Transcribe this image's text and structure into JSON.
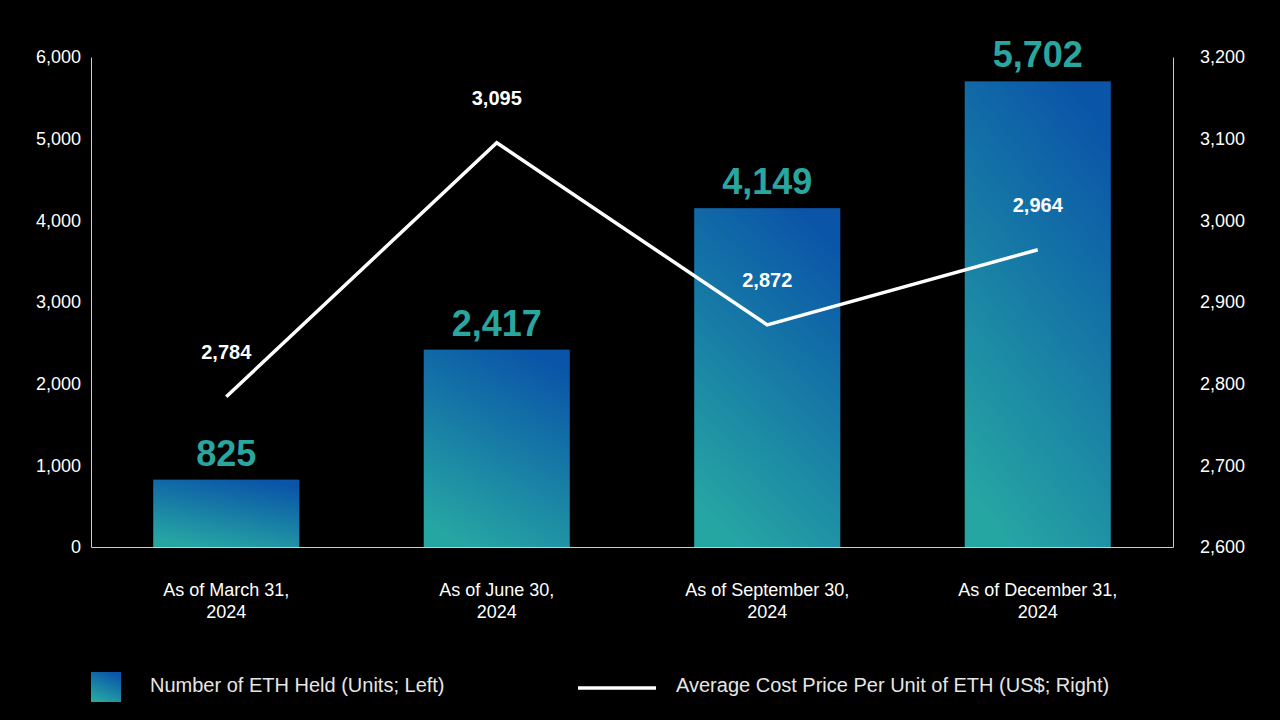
{
  "chart_data": {
    "type": "bar",
    "categories": [
      "As of March 31, 2024",
      "As of June 30, 2024",
      "As of September 30, 2024",
      "As of December 31, 2024"
    ],
    "series": [
      {
        "name": "Number of ETH Held (Units; Left)",
        "type": "bar",
        "color": "#0a55a8",
        "values": [
          825,
          2417,
          4149,
          5702
        ],
        "value_labels": [
          "825",
          "2,417",
          "4,149",
          "5,702"
        ]
      },
      {
        "name": "Average Cost Price Per Unit of ETH (US$; Right)",
        "type": "line",
        "axis": "y2",
        "color": "#ffffff",
        "values": [
          2784,
          3095,
          2872,
          2964
        ],
        "value_labels": [
          "2,784",
          "3,095",
          "2,872",
          "2,964"
        ]
      }
    ],
    "ylim": [
      0,
      6000
    ],
    "yticks": [
      0,
      {
        "value": 1000,
        "label": "1,000"
      },
      {
        "value": 2000,
        "label": "2,000"
      },
      {
        "value": 3000,
        "label": "3,000"
      },
      {
        "value": 4000,
        "label": "4,000"
      },
      {
        "value": 5000,
        "label": "5,000"
      },
      {
        "value": 6000,
        "label": "6,000"
      }
    ],
    "y2lim": [
      2600,
      3200
    ],
    "y2ticks": [
      {
        "value": 2600,
        "label": "2,600"
      },
      {
        "value": 2700,
        "label": "2,700"
      },
      {
        "value": 2800,
        "label": "2,800"
      },
      {
        "value": 2900,
        "label": "2,900"
      },
      {
        "value": 3000,
        "label": "3,000"
      },
      {
        "value": 3100,
        "label": "3,100"
      },
      {
        "value": 3200,
        "label": "3,200"
      }
    ],
    "grid": false,
    "data_labels": true,
    "legend": "bottom"
  }
}
